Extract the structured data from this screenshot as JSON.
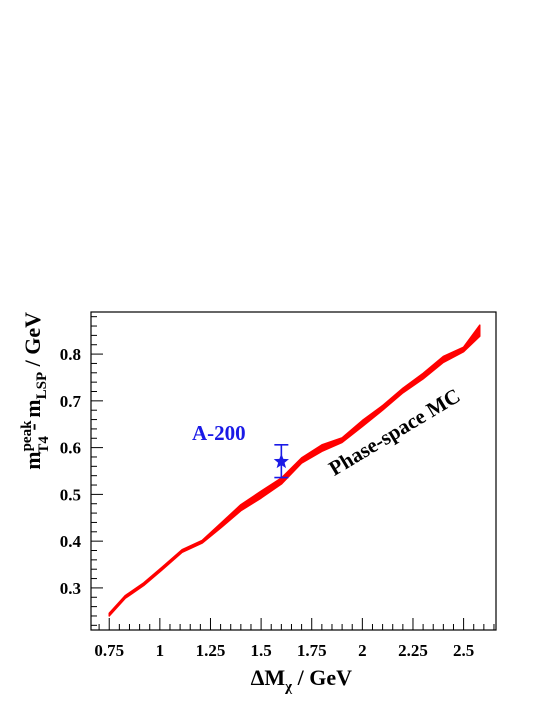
{
  "chart_data": {
    "type": "line",
    "title": "",
    "xlabel": {
      "main": "ΔM",
      "sub": "χ",
      "unit": " / GeV"
    },
    "ylabel": {
      "main": "m",
      "sup": "peak",
      "sub": "T4",
      "mid": " - m",
      "sub2": "LSP",
      "unit": " / GeV"
    },
    "xlim": [
      0.66,
      2.66
    ],
    "ylim": [
      0.21,
      0.89
    ],
    "x_ticks": [
      0.75,
      1,
      1.25,
      1.5,
      1.75,
      2,
      2.25,
      2.5
    ],
    "x_tick_labels": [
      "0.75",
      "1",
      "1.25",
      "1.5",
      "1.75",
      "2",
      "2.25",
      "2.5"
    ],
    "y_ticks": [
      0.3,
      0.4,
      0.5,
      0.6,
      0.7,
      0.8
    ],
    "y_tick_labels": [
      "0.3",
      "0.4",
      "0.5",
      "0.6",
      "0.7",
      "0.8"
    ],
    "grid": false,
    "series": [
      {
        "name": "Phase-space MC",
        "color": "#ff0000",
        "style": "band",
        "x": [
          0.75,
          0.83,
          0.92,
          1.01,
          1.11,
          1.21,
          1.3,
          1.4,
          1.5,
          1.6,
          1.7,
          1.8,
          1.9,
          2.0,
          2.1,
          2.2,
          2.3,
          2.4,
          2.5,
          2.58
        ],
        "lower": [
          0.24,
          0.278,
          0.305,
          0.338,
          0.376,
          0.396,
          0.428,
          0.465,
          0.492,
          0.522,
          0.567,
          0.592,
          0.611,
          0.645,
          0.68,
          0.717,
          0.747,
          0.782,
          0.805,
          0.838
        ],
        "upper": [
          0.246,
          0.284,
          0.311,
          0.344,
          0.382,
          0.402,
          0.438,
          0.478,
          0.507,
          0.535,
          0.578,
          0.606,
          0.621,
          0.658,
          0.69,
          0.727,
          0.759,
          0.795,
          0.815,
          0.862
        ]
      }
    ],
    "points": [
      {
        "name": "A-200",
        "x": 1.6,
        "y": 0.57,
        "yerr_low": 0.034,
        "yerr_high": 0.036,
        "color": "#1a1ae6",
        "marker": "star"
      }
    ],
    "annotations": [
      {
        "text": "Phase-space MC",
        "color": "#000000"
      },
      {
        "text": "A-200",
        "color": "#1a1ae6"
      }
    ]
  }
}
